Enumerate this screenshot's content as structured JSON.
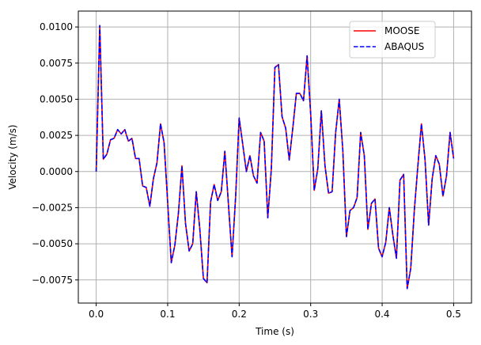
{
  "chart_data": {
    "type": "line",
    "title": "",
    "xlabel": "Time (s)",
    "ylabel": "Velocity (m/s)",
    "xlim": [
      -0.025,
      0.525
    ],
    "ylim": [
      -0.0091,
      0.0111
    ],
    "grid": true,
    "legend_position": "upper right",
    "xticks": [
      0.0,
      0.1,
      0.2,
      0.3,
      0.4,
      0.5
    ],
    "xtick_labels": [
      "0.0",
      "0.1",
      "0.2",
      "0.3",
      "0.4",
      "0.5"
    ],
    "yticks": [
      -0.0075,
      -0.005,
      -0.0025,
      0.0,
      0.0025,
      0.005,
      0.0075,
      0.01
    ],
    "ytick_labels": [
      "−0.0075",
      "−0.0050",
      "−0.0025",
      "0.0000",
      "0.0025",
      "0.0050",
      "0.0075",
      "0.0100"
    ],
    "x": [
      0.0,
      0.005,
      0.01,
      0.015,
      0.02,
      0.025,
      0.03,
      0.035,
      0.04,
      0.045,
      0.05,
      0.055,
      0.06,
      0.065,
      0.07,
      0.075,
      0.08,
      0.085,
      0.09,
      0.095,
      0.1,
      0.105,
      0.11,
      0.115,
      0.12,
      0.125,
      0.13,
      0.135,
      0.14,
      0.145,
      0.15,
      0.155,
      0.16,
      0.165,
      0.17,
      0.175,
      0.18,
      0.185,
      0.19,
      0.195,
      0.2,
      0.205,
      0.21,
      0.215,
      0.22,
      0.225,
      0.23,
      0.235,
      0.24,
      0.245,
      0.25,
      0.255,
      0.26,
      0.265,
      0.27,
      0.275,
      0.28,
      0.285,
      0.29,
      0.295,
      0.3,
      0.305,
      0.31,
      0.315,
      0.32,
      0.325,
      0.33,
      0.335,
      0.34,
      0.345,
      0.35,
      0.355,
      0.36,
      0.365,
      0.37,
      0.375,
      0.38,
      0.385,
      0.39,
      0.395,
      0.4,
      0.405,
      0.41,
      0.415,
      0.42,
      0.425,
      0.43,
      0.435,
      0.44,
      0.445,
      0.45,
      0.455,
      0.46,
      0.465,
      0.47,
      0.475,
      0.48,
      0.485,
      0.49,
      0.495,
      0.5
    ],
    "series": [
      {
        "name": "MOOSE",
        "color": "#ff0000",
        "linestyle": "solid",
        "values": [
          0.0,
          0.0101,
          0.00085,
          0.0012,
          0.0022,
          0.0023,
          0.0029,
          0.0026,
          0.0029,
          0.0021,
          0.0023,
          0.0009,
          0.0009,
          -0.001,
          -0.0011,
          -0.0024,
          -0.0005,
          0.0006,
          0.0033,
          0.002,
          -0.0022,
          -0.0063,
          -0.0051,
          -0.0029,
          0.0004,
          -0.0036,
          -0.0055,
          -0.005,
          -0.0014,
          -0.004,
          -0.0074,
          -0.0077,
          -0.0021,
          -0.0009,
          -0.002,
          -0.0014,
          0.0014,
          -0.0023,
          -0.0059,
          -0.0018,
          0.0037,
          0.0019,
          0.0,
          0.0011,
          -0.0003,
          -0.0008,
          0.0027,
          0.0021,
          -0.0032,
          0.0002,
          0.0072,
          0.0074,
          0.0038,
          0.003,
          0.0008,
          0.003,
          0.0054,
          0.0054,
          0.0049,
          0.008,
          0.004,
          -0.0013,
          0.0002,
          0.0042,
          0.0004,
          -0.0015,
          -0.0014,
          0.0027,
          0.005,
          0.0015,
          -0.0045,
          -0.0027,
          -0.0025,
          -0.0018,
          0.0027,
          0.0011,
          -0.004,
          -0.0022,
          -0.0019,
          -0.0053,
          -0.0059,
          -0.0049,
          -0.0025,
          -0.0044,
          -0.006,
          -0.0006,
          -0.0002,
          -0.0081,
          -0.0067,
          -0.0027,
          0.0004,
          0.0033,
          0.0008,
          -0.0037,
          -0.0005,
          0.0011,
          0.0005,
          -0.0017,
          -0.0003,
          0.0027,
          0.0009
        ]
      },
      {
        "name": "ABAQUS",
        "color": "#0000ff",
        "linestyle": "dashed",
        "values": [
          0.0,
          0.0101,
          0.00085,
          0.0012,
          0.0022,
          0.0023,
          0.0029,
          0.0026,
          0.0029,
          0.0021,
          0.0023,
          0.0009,
          0.0009,
          -0.001,
          -0.0011,
          -0.0024,
          -0.0005,
          0.0006,
          0.0033,
          0.002,
          -0.0022,
          -0.0063,
          -0.0051,
          -0.0029,
          0.0004,
          -0.0036,
          -0.0055,
          -0.005,
          -0.0014,
          -0.004,
          -0.0074,
          -0.0077,
          -0.0021,
          -0.0009,
          -0.002,
          -0.0014,
          0.0014,
          -0.0023,
          -0.0059,
          -0.0018,
          0.0037,
          0.0019,
          0.0,
          0.0011,
          -0.0003,
          -0.0008,
          0.0027,
          0.0021,
          -0.0032,
          0.0002,
          0.0072,
          0.0074,
          0.0038,
          0.003,
          0.0008,
          0.003,
          0.0054,
          0.0054,
          0.0049,
          0.008,
          0.004,
          -0.0013,
          0.0002,
          0.0042,
          0.0004,
          -0.0015,
          -0.0014,
          0.0027,
          0.005,
          0.0015,
          -0.0045,
          -0.0027,
          -0.0025,
          -0.0018,
          0.0027,
          0.0011,
          -0.004,
          -0.0022,
          -0.0019,
          -0.0053,
          -0.0059,
          -0.0049,
          -0.0025,
          -0.0044,
          -0.006,
          -0.0006,
          -0.0002,
          -0.0081,
          -0.0067,
          -0.0027,
          0.0004,
          0.0033,
          0.0008,
          -0.0037,
          -0.0005,
          0.0011,
          0.0005,
          -0.0017,
          -0.0003,
          0.0027,
          0.0009
        ]
      }
    ]
  },
  "legend": {
    "items": [
      {
        "label": "MOOSE",
        "color": "#ff0000",
        "style": "solid"
      },
      {
        "label": "ABAQUS",
        "color": "#0000ff",
        "style": "dashed"
      }
    ]
  },
  "colors": {
    "grid": "#b0b0b0",
    "axes": "#000000",
    "background": "#ffffff"
  }
}
